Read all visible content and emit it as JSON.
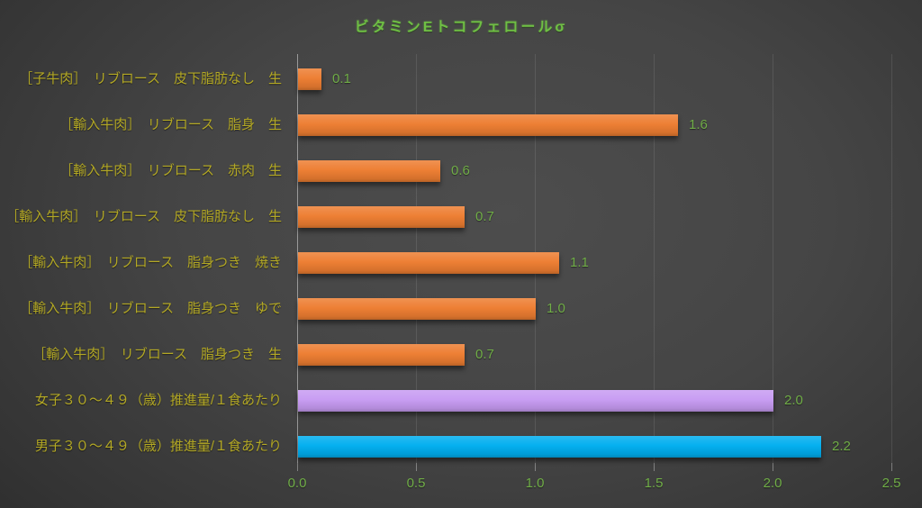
{
  "chart_data": {
    "type": "bar",
    "orientation": "horizontal",
    "title": "ビタミンEトコフェロールσ",
    "categories": [
      "［子牛肉］　リブロース　皮下脂肪なし　生",
      "［輸入牛肉］　リブロース　脂身　生",
      "［輸入牛肉］　リブロース　赤肉　生",
      "［輸入牛肉］　リブロース　皮下脂肪なし　生",
      "［輸入牛肉］　リブロース　脂身つき　焼き",
      "［輸入牛肉］　リブロース　脂身つき　ゆで",
      "［輸入牛肉］　リブロース　脂身つき　生",
      "女子３０～４９（歳）推進量/１食あたり",
      "男子３０～４９（歳）推進量/１食あたり"
    ],
    "values": [
      0.1,
      1.6,
      0.6,
      0.7,
      1.1,
      1.0,
      0.7,
      2.0,
      2.2
    ],
    "value_labels": [
      "0.1",
      "1.6",
      "0.6",
      "0.7",
      "1.1",
      "1.0",
      "0.7",
      "2.0",
      "2.2"
    ],
    "bar_colors": [
      "#ed7d31",
      "#ed7d31",
      "#ed7d31",
      "#ed7d31",
      "#ed7d31",
      "#ed7d31",
      "#ed7d31",
      "#c79bf2",
      "#00aeef"
    ],
    "xlim": [
      0,
      2.5
    ],
    "x_ticks": [
      "0.0",
      "0.5",
      "1.0",
      "1.5",
      "2.0",
      "2.5"
    ],
    "x_tick_values": [
      0.0,
      0.5,
      1.0,
      1.5,
      2.0,
      2.5
    ],
    "grid": true,
    "legend": false,
    "colors": {
      "background_center": "#4d4d4d",
      "background_edge": "#262626",
      "title": "#6fbf44",
      "value_label": "#70ad47",
      "tick_label": "#70ad47",
      "category_label": "#b3a824",
      "gridline": "rgba(255,255,255,0.10)",
      "orange_bar": "#ed7d31",
      "purple_bar": "#c79bf2",
      "blue_bar": "#00aeef"
    }
  }
}
